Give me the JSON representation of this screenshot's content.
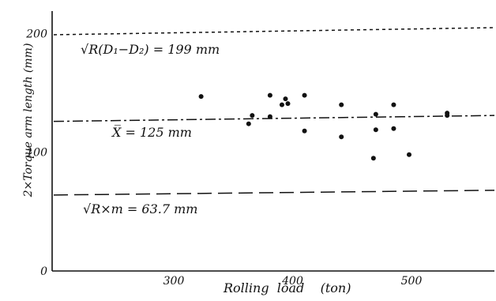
{
  "chart_data": {
    "type": "scatter",
    "xlabel": "Rolling  load    (ton)",
    "ylabel": "2×Torque arm length (mm)",
    "xlim": [
      205,
      560
    ],
    "ylim": [
      0,
      220
    ],
    "x_ticks": [
      300,
      400,
      500
    ],
    "y_ticks": [
      0,
      100,
      200
    ],
    "grid": false,
    "points": [
      {
        "x": 323,
        "y": 147
      },
      {
        "x": 363,
        "y": 124
      },
      {
        "x": 366,
        "y": 131
      },
      {
        "x": 381,
        "y": 148
      },
      {
        "x": 381,
        "y": 130
      },
      {
        "x": 391,
        "y": 140
      },
      {
        "x": 394,
        "y": 145
      },
      {
        "x": 396,
        "y": 141
      },
      {
        "x": 410,
        "y": 148
      },
      {
        "x": 410,
        "y": 118
      },
      {
        "x": 441,
        "y": 140
      },
      {
        "x": 441,
        "y": 113
      },
      {
        "x": 468,
        "y": 95
      },
      {
        "x": 470,
        "y": 132
      },
      {
        "x": 470,
        "y": 119
      },
      {
        "x": 485,
        "y": 140
      },
      {
        "x": 485,
        "y": 120
      },
      {
        "x": 498,
        "y": 98
      },
      {
        "x": 530,
        "y": 131
      },
      {
        "x": 530,
        "y": 133
      }
    ],
    "reference_lines": [
      {
        "label": "√R(D₁−D₂) = 199 mm",
        "y_start": 199,
        "y_end": 205,
        "style": "dotted"
      },
      {
        "label": "X̅ = 125 mm",
        "y_start": 126,
        "y_end": 131,
        "style": "dash-dot"
      },
      {
        "label": "√R×m = 63.7 mm",
        "y_start": 64,
        "y_end": 68,
        "style": "dashed"
      }
    ]
  }
}
